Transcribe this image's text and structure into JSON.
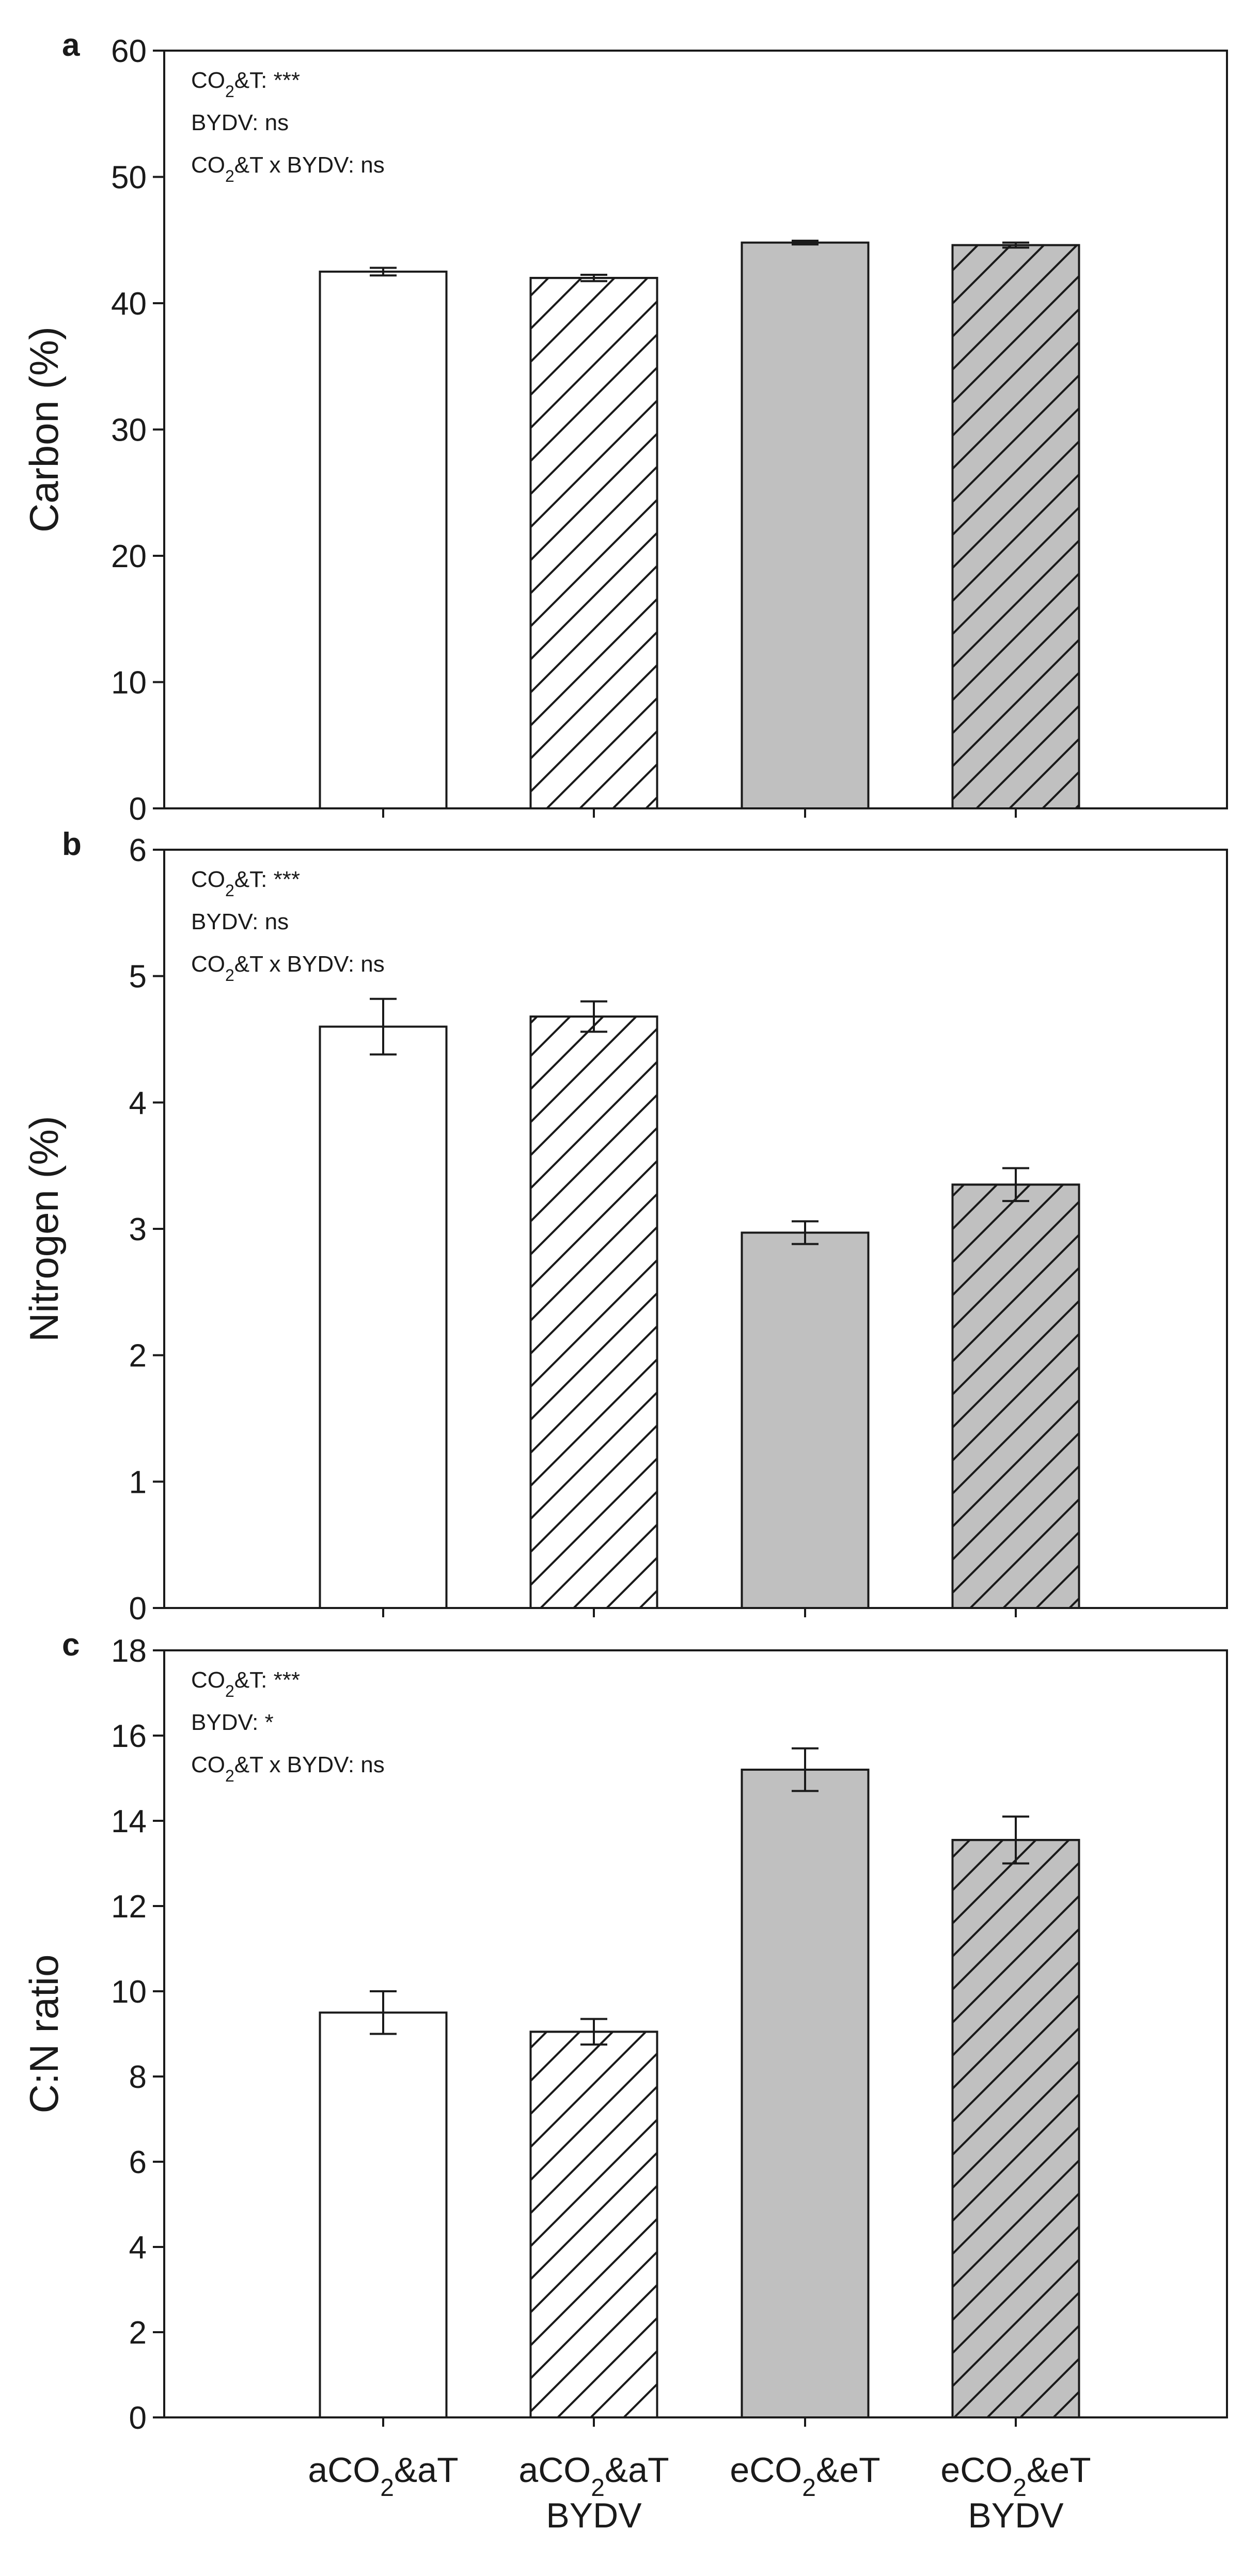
{
  "chart_data": [
    {
      "type": "bar",
      "panel": "a",
      "ylabel": "Carbon (%)",
      "ylim": [
        0,
        60
      ],
      "yticks": [
        0,
        10,
        20,
        30,
        40,
        50,
        60
      ],
      "categories": [
        "aCO2&aT",
        "aCO2&aT BYDV",
        "eCO2&eT",
        "eCO2&eT BYDV"
      ],
      "values": [
        42.5,
        42.0,
        44.8,
        44.6
      ],
      "errors": [
        0.3,
        0.25,
        0.15,
        0.2
      ],
      "annotations": [
        {
          "base": "CO",
          "sub": "2",
          "rest": "&T: ***"
        },
        {
          "base": "BYDV: ns",
          "sub": "",
          "rest": ""
        },
        {
          "base": "CO",
          "sub": "2",
          "rest": "&T x BYDV: ns"
        }
      ]
    },
    {
      "type": "bar",
      "panel": "b",
      "ylabel": "Nitrogen (%)",
      "ylim": [
        0,
        6
      ],
      "yticks": [
        0,
        1,
        2,
        3,
        4,
        5,
        6
      ],
      "categories": [
        "aCO2&aT",
        "aCO2&aT BYDV",
        "eCO2&eT",
        "eCO2&eT BYDV"
      ],
      "values": [
        4.6,
        4.68,
        2.97,
        3.35
      ],
      "errors": [
        0.22,
        0.12,
        0.09,
        0.13
      ],
      "annotations": [
        {
          "base": "CO",
          "sub": "2",
          "rest": "&T: ***"
        },
        {
          "base": "BYDV: ns",
          "sub": "",
          "rest": ""
        },
        {
          "base": "CO",
          "sub": "2",
          "rest": "&T x BYDV: ns"
        }
      ]
    },
    {
      "type": "bar",
      "panel": "c",
      "ylabel": "C:N ratio",
      "ylim": [
        0,
        18
      ],
      "yticks": [
        0,
        2,
        4,
        6,
        8,
        10,
        12,
        14,
        16,
        18
      ],
      "categories": [
        "aCO2&aT",
        "aCO2&aT BYDV",
        "eCO2&eT",
        "eCO2&eT BYDV"
      ],
      "values": [
        9.5,
        9.05,
        15.2,
        13.55
      ],
      "errors": [
        0.5,
        0.3,
        0.5,
        0.55
      ],
      "annotations": [
        {
          "base": "CO",
          "sub": "2",
          "rest": "&T: ***"
        },
        {
          "base": "BYDV: *",
          "sub": "",
          "rest": ""
        },
        {
          "base": "CO",
          "sub": "2",
          "rest": "&T x BYDV: ns"
        }
      ]
    }
  ],
  "xaxis_labels": [
    {
      "line1": {
        "base": "aCO",
        "sub": "2",
        "rest": "&aT"
      },
      "line2": ""
    },
    {
      "line1": {
        "base": "aCO",
        "sub": "2",
        "rest": "&aT"
      },
      "line2": "BYDV"
    },
    {
      "line1": {
        "base": "eCO",
        "sub": "2",
        "rest": "&eT"
      },
      "line2": ""
    },
    {
      "line1": {
        "base": "eCO",
        "sub": "2",
        "rest": "&eT"
      },
      "line2": "BYDV"
    }
  ],
  "series_styles": [
    {
      "fill": "#ffffff",
      "hatched": false
    },
    {
      "fill": "#ffffff",
      "hatched": true
    },
    {
      "fill": "#c0c0c0",
      "hatched": false
    },
    {
      "fill": "#c0c0c0",
      "hatched": true
    }
  ],
  "colors": {
    "ink": "#1a1a1a",
    "grey_bar": "#c0c0c0",
    "white_bar": "#ffffff"
  }
}
